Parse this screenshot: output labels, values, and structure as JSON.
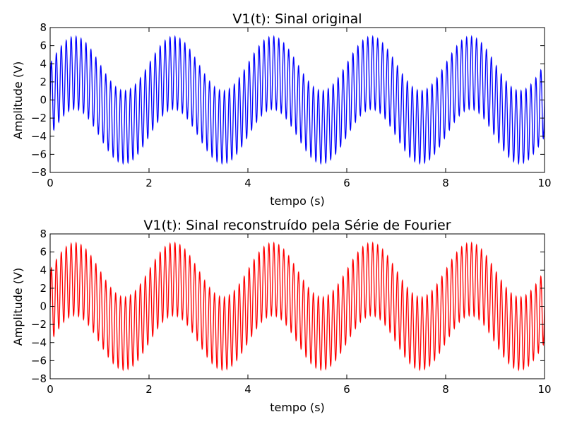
{
  "chart_data": [
    {
      "type": "line",
      "title": "V1(t): Sinal original",
      "xlabel": "tempo (s)",
      "ylabel": "Amplitude (V)",
      "xlim": [
        0,
        10
      ],
      "ylim": [
        -8,
        8
      ],
      "xticks": [
        "0",
        "2",
        "4",
        "6",
        "8",
        "10"
      ],
      "yticks": [
        "8",
        "6",
        "4",
        "2",
        "0",
        "−2",
        "−4",
        "−6",
        "−8"
      ],
      "grid": false,
      "legend": "none",
      "color": "#0000ff",
      "series": [
        {
          "name": "",
          "components": [
            {
              "amplitude": 3,
              "frequency_hz": 0.5,
              "phase": "sin"
            },
            {
              "amplitude": 4,
              "frequency_hz": 10,
              "phase": "sin"
            }
          ]
        }
      ]
    },
    {
      "type": "line",
      "title": "V1(t): Sinal reconstruído pela Série de Fourier",
      "xlabel": "tempo (s)",
      "ylabel": "Amplitude (V)",
      "xlim": [
        0,
        10
      ],
      "ylim": [
        -8,
        8
      ],
      "xticks": [
        "0",
        "2",
        "4",
        "6",
        "8",
        "10"
      ],
      "yticks": [
        "8",
        "6",
        "4",
        "2",
        "0",
        "−2",
        "−4",
        "−6",
        "−8"
      ],
      "grid": false,
      "legend": "none",
      "color": "#ff0000",
      "series": [
        {
          "name": "",
          "components": [
            {
              "amplitude": 3,
              "frequency_hz": 0.5,
              "phase": "sin"
            },
            {
              "amplitude": 4,
              "frequency_hz": 10,
              "phase": "sin"
            }
          ]
        }
      ]
    }
  ]
}
